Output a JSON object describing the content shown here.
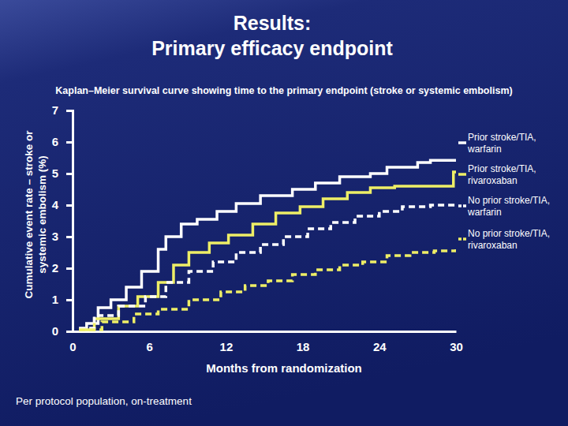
{
  "chart_data": {
    "type": "line",
    "title": "Results:\nPrimary efficacy endpoint",
    "subtitle": "Kaplan–Meier survival curve showing time to the primary endpoint (stroke or systemic embolism)",
    "x_label": "Months from randomization",
    "y_label": "Cumulative event rate – stroke or\nsystemic embolism (%)",
    "footnote": "Per protocol population, on-treatment",
    "xlim": [
      0,
      30
    ],
    "xticks": [
      0,
      6,
      12,
      18,
      24,
      30
    ],
    "ylim": [
      0,
      7
    ],
    "yticks": [
      0,
      1,
      2,
      3,
      4,
      5,
      6,
      7
    ],
    "legend": "right",
    "series": [
      {
        "name": "Prior stroke/TIA, warfarin",
        "color": "#ffffff",
        "line_style": "solid",
        "x": [
          0.5,
          1.1,
          2.0,
          3.0,
          4.2,
          5.4,
          6.7,
          7.3,
          8.5,
          9.75,
          11.3,
          12.8,
          14.7,
          17.2,
          19.0,
          20.9,
          23.3,
          24.6,
          27.0,
          28.0,
          30.0
        ],
        "values": [
          0,
          0.25,
          0.75,
          1.0,
          1.4,
          1.9,
          2.6,
          3.0,
          3.4,
          3.55,
          3.8,
          4.05,
          4.3,
          4.5,
          4.7,
          4.9,
          5.0,
          5.2,
          5.35,
          5.42,
          5.42
        ]
      },
      {
        "name": "Prior stroke/TIA, rivaroxaban",
        "color": "#eeee66",
        "line_style": "solid",
        "x": [
          0.5,
          1.7,
          3.6,
          5.1,
          6.7,
          7.9,
          9.1,
          10.7,
          12.2,
          14.1,
          15.9,
          17.8,
          19.6,
          21.5,
          23.3,
          25.2,
          29.8,
          30.0
        ],
        "values": [
          0.05,
          0.4,
          0.8,
          1.1,
          1.55,
          2.1,
          2.5,
          2.8,
          3.05,
          3.4,
          3.75,
          3.95,
          4.2,
          4.4,
          4.55,
          4.6,
          5.05,
          5.05
        ]
      },
      {
        "name": "No prior stroke/TIA, warfarin",
        "color": "#ffffff",
        "line_style": "dashed",
        "x": [
          0.5,
          1.7,
          3.6,
          5.7,
          7.3,
          9.1,
          11.0,
          12.8,
          14.7,
          16.5,
          18.4,
          20.2,
          22.1,
          24.0,
          25.8,
          28.0,
          30.0
        ],
        "values": [
          0.1,
          0.5,
          0.8,
          1.1,
          1.55,
          1.9,
          2.2,
          2.5,
          2.75,
          3.0,
          3.25,
          3.45,
          3.65,
          3.8,
          3.95,
          4.0,
          4.05
        ]
      },
      {
        "name": "No prior stroke/TIA, rivaroxaban",
        "color": "#eeee66",
        "line_style": "dashed",
        "x": [
          0.5,
          2.3,
          4.8,
          6.7,
          9.1,
          11.6,
          13.5,
          15.3,
          17.2,
          19.0,
          20.9,
          22.7,
          24.6,
          26.4,
          28.3,
          30.0
        ],
        "values": [
          0.05,
          0.3,
          0.55,
          0.7,
          1.0,
          1.25,
          1.45,
          1.6,
          1.8,
          1.95,
          2.1,
          2.2,
          2.4,
          2.5,
          2.55,
          2.6
        ]
      }
    ]
  }
}
